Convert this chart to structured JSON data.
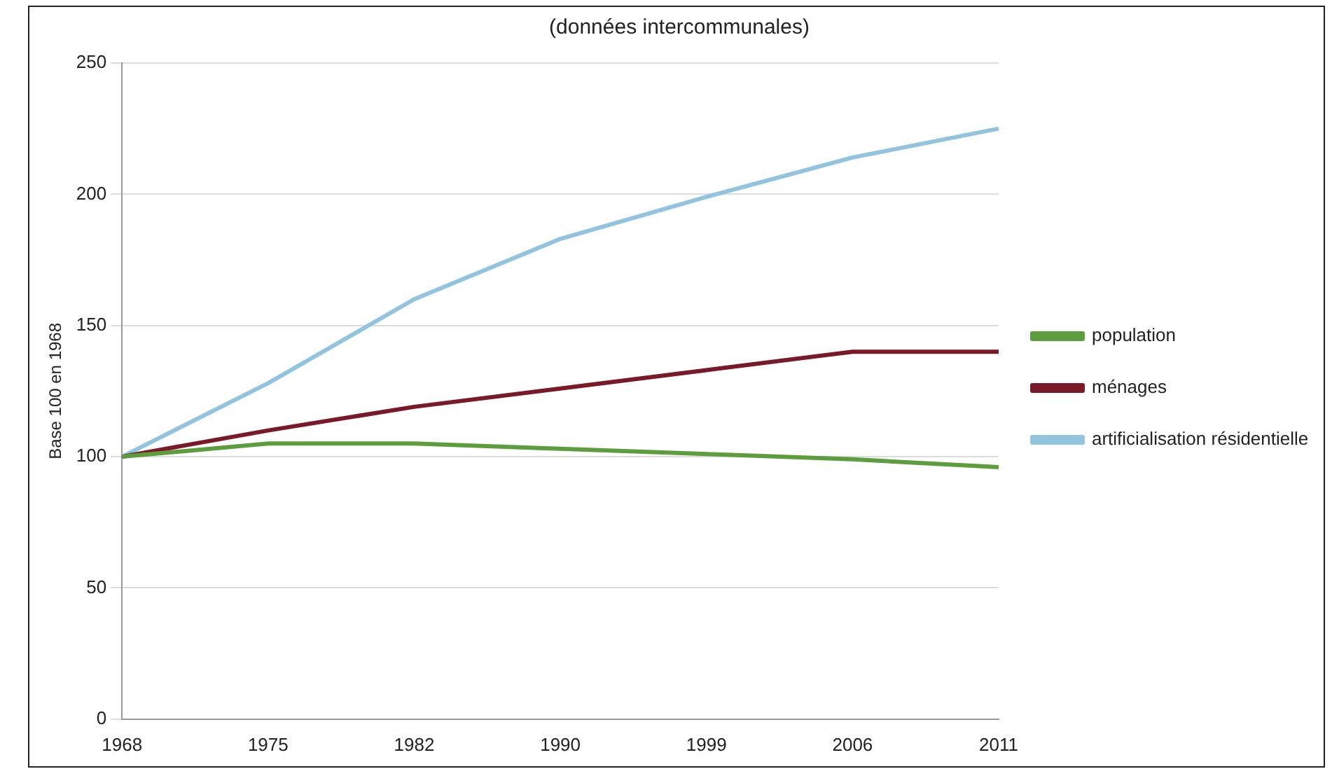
{
  "chart_data": {
    "type": "line",
    "title": "(données intercommunales)",
    "ylabel": "Base 100 en 1968",
    "categories": [
      "1968",
      "1975",
      "1982",
      "1990",
      "1999",
      "2006",
      "2011"
    ],
    "series": [
      {
        "name": "population",
        "color": "#5c9e3e",
        "values": [
          100,
          105,
          105,
          103,
          101,
          99,
          96
        ]
      },
      {
        "name": "ménages",
        "color": "#7a1a28",
        "values": [
          100,
          110,
          119,
          126,
          133,
          140,
          140
        ]
      },
      {
        "name": "artificialisation résidentielle",
        "color": "#92c3df",
        "values": [
          100,
          128,
          160,
          183,
          199,
          214,
          225
        ]
      }
    ],
    "ylim": [
      0,
      250
    ],
    "yticks": [
      0,
      50,
      100,
      150,
      200,
      250
    ],
    "grid": "y",
    "legend": "right",
    "marker": "none",
    "line_style": "solid"
  }
}
